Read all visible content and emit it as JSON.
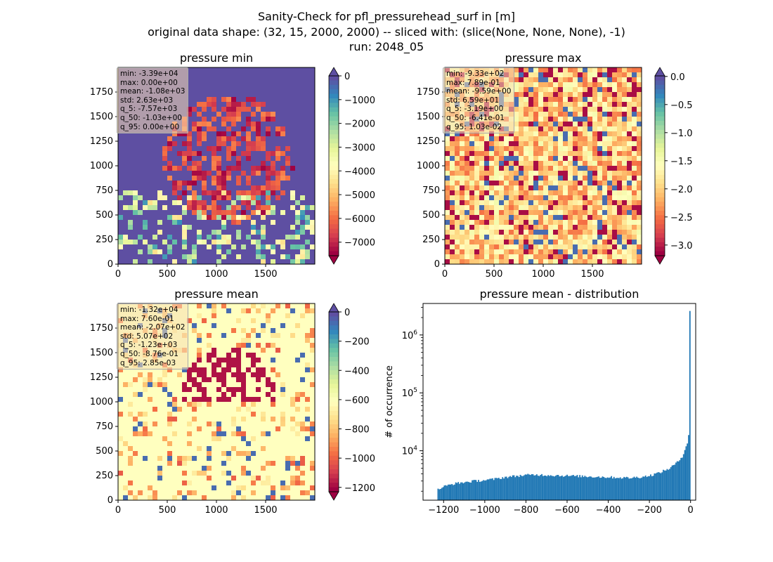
{
  "figure": {
    "title_line1": "Sanity-Check for pfl_pressurehead_surf in [m]",
    "title_line2": "original data shape: (32, 15, 2000, 2000) -- sliced with: (slice(None, None, None), -1)",
    "title_line3": "run: 2048_05"
  },
  "panels": [
    {
      "title": "pressure min",
      "stats": [
        "min: -3.39e+04",
        "max: 0.00e+00",
        "mean: -1.08e+03",
        "std: 2.63e+03",
        "q_5: -7.57e+03",
        "q_50: -1.03e+00",
        "q_95: 0.00e+00"
      ],
      "colorbar_ticks": [
        "0",
        "−1000",
        "−2000",
        "−3000",
        "−4000",
        "−5000",
        "−6000",
        "−7000"
      ],
      "colormap": "Spectral",
      "dominant_color": "#5e4fa2"
    },
    {
      "title": "pressure max",
      "stats": [
        "min: -9.33e+02",
        "max: 7.89e-01",
        "mean: -9.59e+00",
        "std: 6.59e+01",
        "q_5: -3.19e+00",
        "q_50: -6.41e-01",
        "q_95: 1.03e-02"
      ],
      "colorbar_ticks": [
        "0.0",
        "−0.5",
        "−1.0",
        "−1.5",
        "−2.0",
        "−2.5",
        "−3.0"
      ],
      "colormap": "Spectral",
      "dominant_color": "#fdae61"
    },
    {
      "title": "pressure mean",
      "stats": [
        "min: -1.32e+04",
        "max: 7.60e-01",
        "mean: -2.07e+02",
        "std: 5.07e+02",
        "q_5: -1.23e+03",
        "q_50: -8.76e-01",
        "q_95: 2.85e-03"
      ],
      "colorbar_ticks": [
        "0",
        "−200",
        "−400",
        "−600",
        "−800",
        "−1000",
        "−1200"
      ],
      "colormap": "Spectral",
      "dominant_color": "#ffffbf"
    }
  ],
  "map_axes": {
    "x_ticks": [
      "0",
      "500",
      "1000",
      "1500"
    ],
    "y_ticks": [
      "0",
      "250",
      "500",
      "750",
      "1000",
      "1250",
      "1500",
      "1750"
    ]
  },
  "chart_data": [
    {
      "type": "heatmap",
      "title": "pressure min",
      "xlim": [
        0,
        2000
      ],
      "ylim": [
        0,
        2000
      ],
      "clim": [
        -7570,
        0
      ],
      "x_ticks": [
        0,
        500,
        1000,
        1500
      ],
      "y_ticks": [
        0,
        250,
        500,
        750,
        1000,
        1250,
        1500,
        1750
      ],
      "colorbar_ticks": [
        0,
        -1000,
        -2000,
        -3000,
        -4000,
        -5000,
        -6000,
        -7000
      ],
      "colormap": "Spectral",
      "colorbar_extend": "both"
    },
    {
      "type": "heatmap",
      "title": "pressure max",
      "xlim": [
        0,
        2000
      ],
      "ylim": [
        0,
        2000
      ],
      "clim": [
        -3.19,
        0.0103
      ],
      "x_ticks": [
        0,
        500,
        1000,
        1500
      ],
      "y_ticks": [
        0,
        250,
        500,
        750,
        1000,
        1250,
        1500,
        1750
      ],
      "colorbar_ticks": [
        0.0,
        -0.5,
        -1.0,
        -1.5,
        -2.0,
        -2.5,
        -3.0
      ],
      "colormap": "Spectral",
      "colorbar_extend": "both"
    },
    {
      "type": "heatmap",
      "title": "pressure mean",
      "xlim": [
        0,
        2000
      ],
      "ylim": [
        0,
        2000
      ],
      "clim": [
        -1230,
        0.00285
      ],
      "x_ticks": [
        0,
        500,
        1000,
        1500
      ],
      "y_ticks": [
        0,
        250,
        500,
        750,
        1000,
        1250,
        1500,
        1750
      ],
      "colorbar_ticks": [
        0,
        -200,
        -400,
        -600,
        -800,
        -1000,
        -1200
      ],
      "colormap": "Spectral",
      "colorbar_extend": "both"
    },
    {
      "type": "bar",
      "title": "pressure mean - distribution",
      "ylabel": "# of occurrence",
      "xlabel": "",
      "y_scale": "log",
      "xlim": [
        -1300,
        25
      ],
      "ylim": [
        1400,
        3500000
      ],
      "x_ticks": [
        -1200,
        -1000,
        -800,
        -600,
        -400,
        -200,
        0
      ],
      "x_tick_labels": [
        "−1200",
        "−1000",
        "−800",
        "−600",
        "−400",
        "−200",
        "0"
      ],
      "y_tick_labels": [
        "10^4",
        "10^5",
        "10^6"
      ],
      "color": "#1f77b4",
      "bin_width": 6.15,
      "bin_edges_range": [
        -1230,
        0
      ],
      "profile_points": [
        [
          -1230,
          2100
        ],
        [
          -1200,
          2400
        ],
        [
          -1150,
          2700
        ],
        [
          -1100,
          2850
        ],
        [
          -1050,
          3000
        ],
        [
          -1000,
          3100
        ],
        [
          -950,
          3250
        ],
        [
          -900,
          3500
        ],
        [
          -850,
          3650
        ],
        [
          -800,
          3800
        ],
        [
          -750,
          3850
        ],
        [
          -700,
          3800
        ],
        [
          -650,
          3750
        ],
        [
          -600,
          3700
        ],
        [
          -550,
          3650
        ],
        [
          -500,
          3600
        ],
        [
          -450,
          3550
        ],
        [
          -400,
          3500
        ],
        [
          -350,
          3450
        ],
        [
          -300,
          3400
        ],
        [
          -250,
          3500
        ],
        [
          -200,
          3700
        ],
        [
          -150,
          4200
        ],
        [
          -100,
          5000
        ],
        [
          -60,
          6500
        ],
        [
          -40,
          8000
        ],
        [
          -25,
          11000
        ],
        [
          -15,
          14000
        ],
        [
          -8,
          20000
        ],
        [
          -4,
          27000
        ],
        [
          0,
          2600000
        ]
      ]
    }
  ]
}
